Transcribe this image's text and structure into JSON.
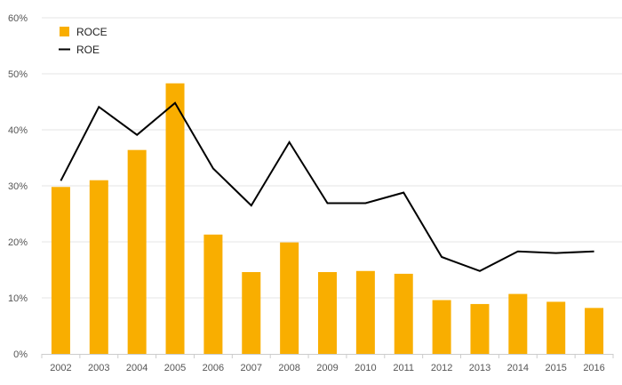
{
  "chart_data": {
    "type": "bar",
    "categories": [
      "2002",
      "2003",
      "2004",
      "2005",
      "2006",
      "2007",
      "2008",
      "2009",
      "2010",
      "2011",
      "2012",
      "2013",
      "2014",
      "2015",
      "2016"
    ],
    "series": [
      {
        "name": "ROCE",
        "kind": "bar",
        "color": "#F9AE00",
        "values": [
          29.8,
          31.0,
          36.4,
          48.3,
          21.3,
          14.6,
          19.9,
          14.6,
          14.8,
          14.3,
          9.6,
          8.9,
          10.7,
          9.3,
          8.2
        ]
      },
      {
        "name": "ROE",
        "kind": "line",
        "color": "#000000",
        "values": [
          30.9,
          44.1,
          39.1,
          44.8,
          33.1,
          26.5,
          37.8,
          26.9,
          26.9,
          28.8,
          17.3,
          14.8,
          18.3,
          18.0,
          18.3
        ]
      }
    ],
    "ylim": [
      0,
      60
    ],
    "yticks": [
      0,
      10,
      20,
      30,
      40,
      50,
      60
    ],
    "ytick_labels": [
      "0%",
      "10%",
      "20%",
      "30%",
      "40%",
      "50%",
      "60%"
    ],
    "grid": true,
    "legend_position": "top-left"
  }
}
